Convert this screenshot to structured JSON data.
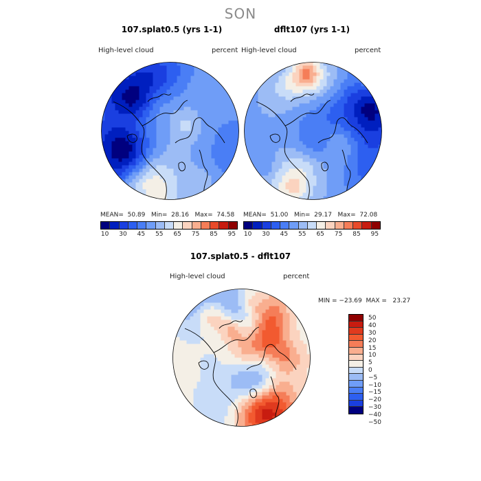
{
  "season": "SON",
  "panels": [
    {
      "title": "107.splat0.5 (yrs 1-1)",
      "variable": "High-level cloud",
      "units": "percent",
      "stats": "MEAN=  50.89   Min=  28.16   Max=  74.58",
      "seed": 11
    },
    {
      "title": "dflt107 (yrs 1-1)",
      "variable": "High-level cloud",
      "units": "percent",
      "stats": "MEAN=  51.00   Min=  29.17   Max=  72.08",
      "seed": 29
    },
    {
      "title": "107.splat0.5 - dflt107",
      "variable": "High-level cloud",
      "units": "percent",
      "stats": "MIN = −23.69  MAX =   23.27",
      "seed": 47
    }
  ],
  "chart_data": [
    {
      "type": "heatmap",
      "projection": "polar stereographic (North Pole)",
      "title": "107.splat0.5 (yrs 1-1)",
      "variable": "High-level cloud",
      "units": "percent",
      "mean": 50.89,
      "min": 28.16,
      "max": 74.58,
      "colorbar_levels": [
        10,
        20,
        30,
        40,
        45,
        50,
        55,
        60,
        65,
        70,
        75,
        80,
        85,
        90,
        95
      ],
      "colorbar_tick_labels": [
        "10",
        "30",
        "45",
        "55",
        "65",
        "75",
        "85",
        "95"
      ],
      "colors": [
        "#00007f",
        "#001fbf",
        "#1a3fe0",
        "#2d5ff0",
        "#4a7ef5",
        "#6f9df7",
        "#9cbcf5",
        "#c8dcf8",
        "#f4efe6",
        "#fbd3bf",
        "#f9ae8f",
        "#f57d58",
        "#e84a2a",
        "#c81c10",
        "#8f0000"
      ]
    },
    {
      "type": "heatmap",
      "projection": "polar stereographic (North Pole)",
      "title": "dflt107 (yrs 1-1)",
      "variable": "High-level cloud",
      "units": "percent",
      "mean": 51.0,
      "min": 29.17,
      "max": 72.08,
      "colorbar_levels": [
        10,
        20,
        30,
        40,
        45,
        50,
        55,
        60,
        65,
        70,
        75,
        80,
        85,
        90,
        95
      ],
      "colorbar_tick_labels": [
        "10",
        "30",
        "45",
        "55",
        "65",
        "75",
        "85",
        "95"
      ],
      "colors": [
        "#00007f",
        "#001fbf",
        "#1a3fe0",
        "#2d5ff0",
        "#4a7ef5",
        "#6f9df7",
        "#9cbcf5",
        "#c8dcf8",
        "#f4efe6",
        "#fbd3bf",
        "#f9ae8f",
        "#f57d58",
        "#e84a2a",
        "#c81c10",
        "#8f0000"
      ]
    },
    {
      "type": "heatmap",
      "projection": "polar stereographic (North Pole)",
      "title": "107.splat0.5 - dflt107",
      "variable": "High-level cloud",
      "units": "percent",
      "min": -23.69,
      "max": 23.27,
      "colorbar_levels": [
        50,
        40,
        30,
        20,
        15,
        10,
        5,
        0,
        -5,
        -10,
        -15,
        -20,
        -30,
        -40,
        -50
      ],
      "colorbar_tick_labels": [
        "50",
        "40",
        "30",
        "20",
        "15",
        "10",
        "5",
        "0",
        "−5",
        "−10",
        "−15",
        "−20",
        "−30",
        "−40",
        "−50"
      ],
      "colors": [
        "#8f0000",
        "#c81c10",
        "#e03a1e",
        "#f25a30",
        "#f57d58",
        "#f9ae8f",
        "#fbd3bf",
        "#f4efe6",
        "#c8dcf8",
        "#9cbcf5",
        "#6f9df7",
        "#4a7ef5",
        "#2d5ff0",
        "#1a3fe0",
        "#00007f"
      ]
    }
  ]
}
